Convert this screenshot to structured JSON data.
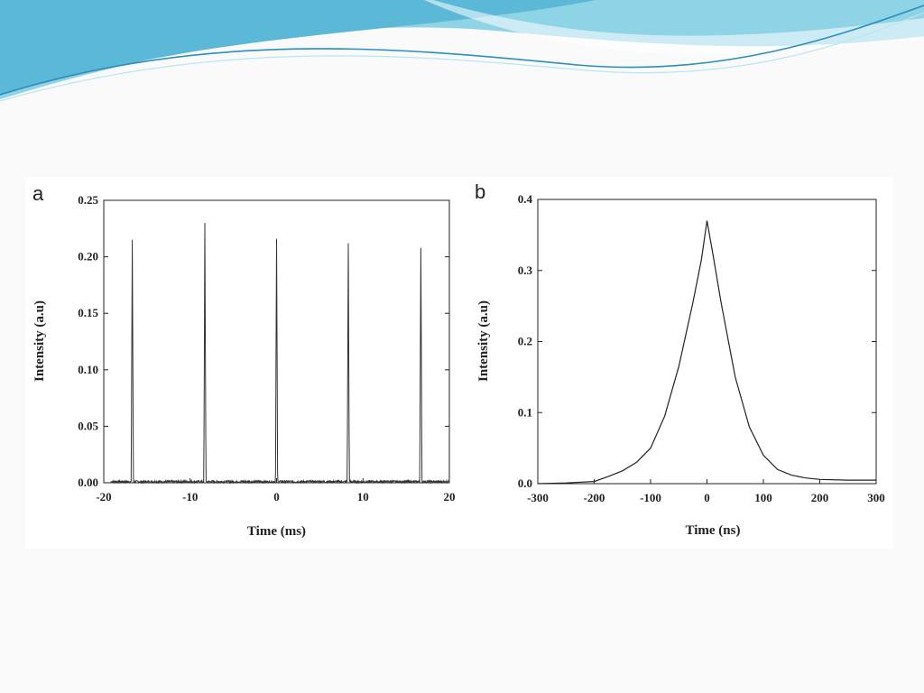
{
  "slide": {
    "accent_colors": [
      "#5bb8d6",
      "#8fd3e6",
      "#2a8fbf",
      "#b9e6f2"
    ]
  },
  "chart_data": [
    {
      "panel": "a",
      "type": "line",
      "xlabel": "Time (ms)",
      "ylabel": "Intensity (a.u)",
      "xlim": [
        -20,
        20
      ],
      "ylim": [
        0,
        0.25
      ],
      "xticks": [
        -20,
        -10,
        0,
        10,
        20
      ],
      "xtick_labels": [
        "-20",
        "-10",
        "0",
        "10",
        "20"
      ],
      "yticks": [
        0,
        0.05,
        0.1,
        0.15,
        0.2,
        0.25
      ],
      "ytick_labels": [
        "0.00",
        "0.05",
        "0.10",
        "0.15",
        "0.20",
        "0.25"
      ],
      "grid": false,
      "line_color": "#333333",
      "baseline_noise": 0.002,
      "pulse_width_ms": 0.25,
      "peaks": [
        {
          "x": -16.7,
          "y": 0.215
        },
        {
          "x": -8.3,
          "y": 0.23
        },
        {
          "x": 0.0,
          "y": 0.216
        },
        {
          "x": 8.3,
          "y": 0.212
        },
        {
          "x": 16.7,
          "y": 0.208
        }
      ]
    },
    {
      "panel": "b",
      "type": "line",
      "xlabel": "Time (ns)",
      "ylabel": "Intensity (a.u)",
      "xlim": [
        -300,
        300
      ],
      "ylim": [
        0,
        0.4
      ],
      "xticks": [
        -300,
        -200,
        -100,
        0,
        100,
        200,
        300
      ],
      "xtick_labels": [
        "-300",
        "-200",
        "-100",
        "0",
        "100",
        "200",
        "300"
      ],
      "yticks": [
        0,
        0.1,
        0.2,
        0.3,
        0.4
      ],
      "ytick_labels": [
        "0.0",
        "0.1",
        "0.2",
        "0.3",
        "0.4"
      ],
      "grid": false,
      "line_color": "#222222",
      "x": [
        -300,
        -250,
        -200,
        -175,
        -150,
        -125,
        -100,
        -75,
        -50,
        -25,
        -10,
        0,
        10,
        25,
        50,
        75,
        100,
        125,
        150,
        175,
        200,
        250,
        300
      ],
      "y": [
        0.0,
        0.001,
        0.003,
        0.01,
        0.018,
        0.03,
        0.05,
        0.095,
        0.165,
        0.255,
        0.315,
        0.37,
        0.325,
        0.255,
        0.15,
        0.08,
        0.04,
        0.02,
        0.012,
        0.008,
        0.006,
        0.005,
        0.005
      ]
    }
  ]
}
